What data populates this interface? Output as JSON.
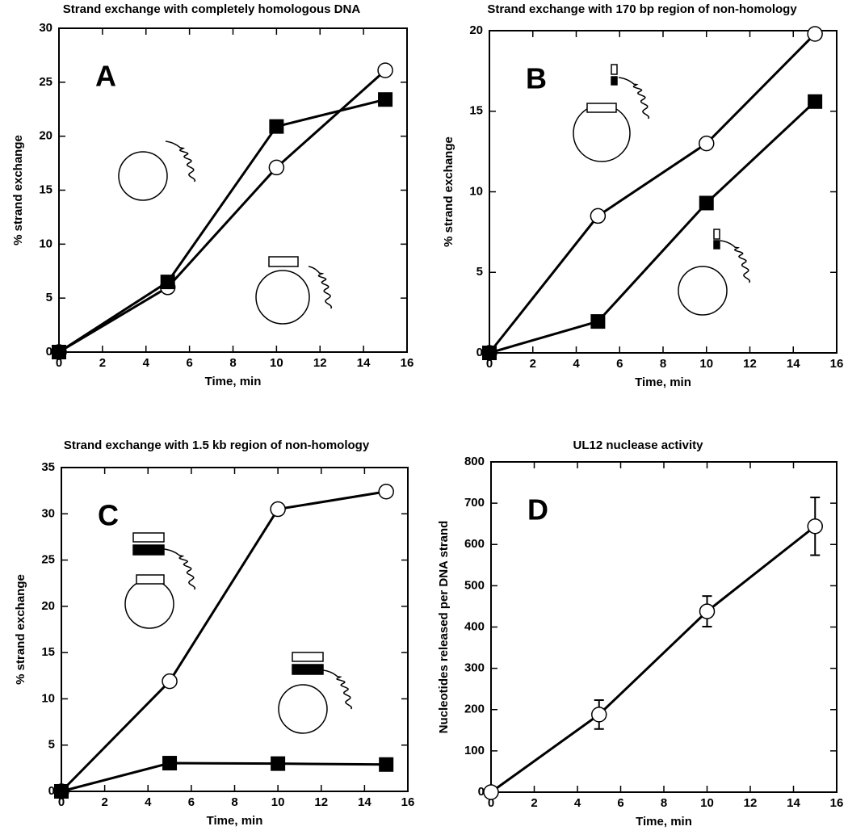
{
  "chart_data": [
    {
      "type": "line",
      "title": "Strand exchange with completely homologous DNA",
      "annotation": "A",
      "x_label": "Time, min",
      "y_label": "% strand exchange",
      "x": [
        0,
        5,
        10,
        15
      ],
      "xlim": [
        0,
        16
      ],
      "xticks": [
        0,
        2,
        4,
        6,
        8,
        10,
        12,
        14,
        16
      ],
      "ylim": [
        0,
        30
      ],
      "yticks": [
        0,
        5,
        10,
        15,
        20,
        25,
        30
      ],
      "series": [
        {
          "marker": "circle",
          "color": "#000000",
          "values": [
            0,
            6,
            17.1,
            26.1
          ]
        },
        {
          "marker": "square",
          "color": "#000000",
          "values": [
            0,
            6.5,
            20.9,
            23.4
          ]
        }
      ]
    },
    {
      "type": "line",
      "title": "Strand exchange with 170 bp region of non-homology",
      "annotation": "B",
      "x_label": "Time, min",
      "y_label": "% strand exchange",
      "x": [
        0,
        5,
        10,
        15
      ],
      "xlim": [
        0,
        16
      ],
      "xticks": [
        0,
        2,
        4,
        6,
        8,
        10,
        12,
        14,
        16
      ],
      "ylim": [
        0,
        20
      ],
      "yticks": [
        0,
        5,
        10,
        15,
        20
      ],
      "series": [
        {
          "marker": "circle",
          "color": "#000000",
          "values": [
            0,
            8.5,
            13,
            19.8
          ]
        },
        {
          "marker": "square",
          "color": "#000000",
          "values": [
            0,
            1.95,
            9.3,
            15.6
          ]
        }
      ]
    },
    {
      "type": "line",
      "title": "Strand exchange with 1.5 kb region of non-homology",
      "annotation": "C",
      "x_label": "Time, min",
      "y_label": "% strand exchange",
      "x": [
        0,
        5,
        10,
        15
      ],
      "xlim": [
        0,
        16
      ],
      "xticks": [
        0,
        2,
        4,
        6,
        8,
        10,
        12,
        14,
        16
      ],
      "ylim": [
        0,
        35
      ],
      "yticks": [
        0,
        5,
        10,
        15,
        20,
        25,
        30,
        35
      ],
      "series": [
        {
          "marker": "circle",
          "color": "#000000",
          "values": [
            0,
            11.9,
            30.5,
            32.4
          ]
        },
        {
          "marker": "square",
          "color": "#000000",
          "values": [
            0,
            3.05,
            3,
            2.9
          ]
        }
      ]
    },
    {
      "type": "line",
      "title": "UL12 nuclease activity",
      "annotation": "D",
      "x_label": "Time, min",
      "y_label": "Nucleotides released per DNA strand",
      "x": [
        0,
        5,
        10,
        15
      ],
      "xlim": [
        0,
        16
      ],
      "xticks": [
        0,
        2,
        4,
        6,
        8,
        10,
        12,
        14,
        16
      ],
      "ylim": [
        0,
        800
      ],
      "yticks": [
        0,
        100,
        200,
        300,
        400,
        500,
        600,
        700,
        800
      ],
      "series": [
        {
          "marker": "circle",
          "color": "#000000",
          "values": [
            0,
            188,
            438,
            644
          ],
          "errors": [
            null,
            35,
            37,
            70
          ]
        }
      ]
    }
  ]
}
